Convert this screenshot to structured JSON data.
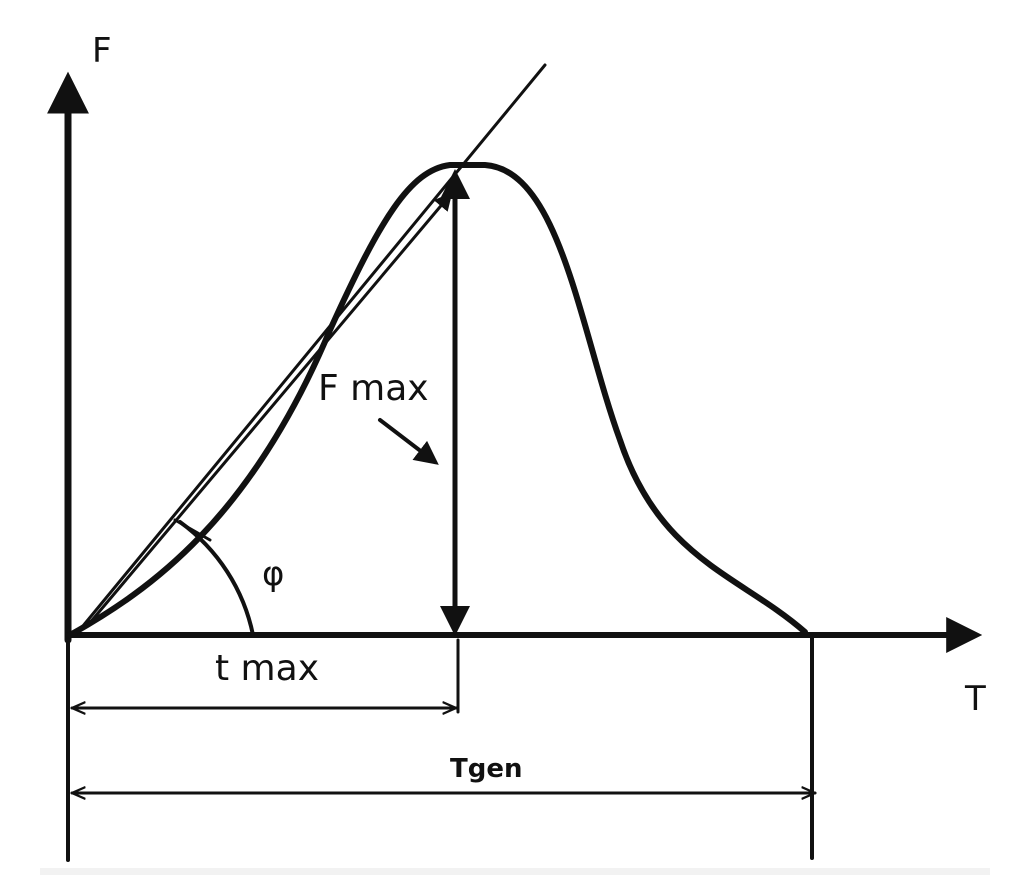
{
  "labels": {
    "y_axis": "F",
    "x_axis": "T",
    "peak": "F max",
    "angle": "φ",
    "peak_time": "t max",
    "total_time": "Tgen"
  }
}
